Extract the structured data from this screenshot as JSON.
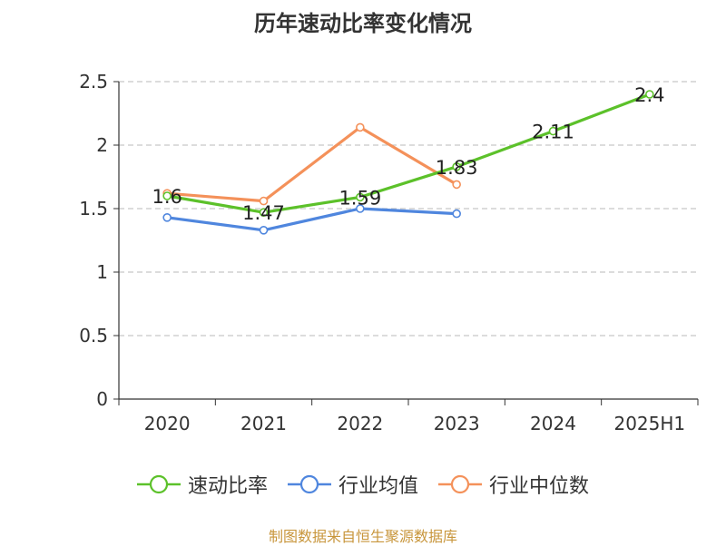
{
  "chart_data": {
    "type": "line",
    "title": "历年速动比率变化情况",
    "categories": [
      "2020",
      "2021",
      "2022",
      "2023",
      "2024",
      "2025H1"
    ],
    "ylim": [
      0,
      2.5
    ],
    "yticks": [
      0,
      0.5,
      1,
      1.5,
      2,
      2.5
    ],
    "ytick_labels": [
      "0",
      "0.5",
      "1",
      "1.5",
      "2",
      "2.5"
    ],
    "grid": true,
    "legend_position": "bottom",
    "series": [
      {
        "name": "速动比率",
        "color": "#5cc12a",
        "values": [
          1.6,
          1.47,
          1.59,
          1.83,
          2.11,
          2.4
        ],
        "labels": [
          "1.6",
          "1.47",
          "1.59",
          "1.83",
          "2.11",
          "2.4"
        ]
      },
      {
        "name": "行业均值",
        "color": "#4f86de",
        "values": [
          1.43,
          1.33,
          1.5,
          1.46,
          null,
          null
        ]
      },
      {
        "name": "行业中位数",
        "color": "#f4915a",
        "values": [
          1.62,
          1.56,
          2.14,
          1.69,
          null,
          null
        ]
      }
    ]
  },
  "source": {
    "text": "制图数据来自恒生聚源数据库",
    "color": "#c8963c"
  }
}
